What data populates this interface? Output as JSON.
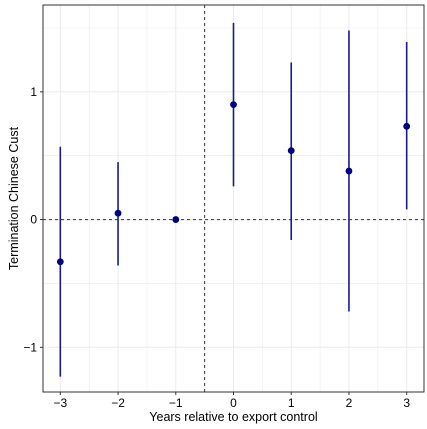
{
  "chart_data": {
    "type": "scatter",
    "subtype": "coefficient-plot-with-confidence-intervals",
    "xlabel": "Years relative to export control",
    "ylabel": "Termination Chinese Cust",
    "xlim": [
      -3.3,
      3.3
    ],
    "ylim": [
      -1.35,
      1.68
    ],
    "x_ticks": [
      -3,
      -2,
      -1,
      0,
      1,
      2,
      3
    ],
    "x_tick_labels": [
      "−3",
      "−2",
      "−1",
      "0",
      "1",
      "2",
      "3"
    ],
    "y_ticks": [
      -1,
      0,
      1
    ],
    "y_tick_labels": [
      "−1",
      "0",
      "1"
    ],
    "grid": true,
    "reference_lines": {
      "horizontal_at_y": 0,
      "vertical_at_x": -0.5,
      "style": "dashed"
    },
    "points": [
      {
        "x": -3,
        "estimate": -0.33,
        "ci_low": -1.23,
        "ci_high": 0.57
      },
      {
        "x": -2,
        "estimate": 0.05,
        "ci_low": -0.36,
        "ci_high": 0.45
      },
      {
        "x": -1,
        "estimate": 0.0,
        "ci_low": 0.0,
        "ci_high": 0.0
      },
      {
        "x": 0,
        "estimate": 0.9,
        "ci_low": 0.26,
        "ci_high": 1.54
      },
      {
        "x": 1,
        "estimate": 0.54,
        "ci_low": -0.16,
        "ci_high": 1.23
      },
      {
        "x": 2,
        "estimate": 0.38,
        "ci_low": -0.72,
        "ci_high": 1.48
      },
      {
        "x": 3,
        "estimate": 0.73,
        "ci_low": 0.08,
        "ci_high": 1.39
      }
    ],
    "colors": {
      "point": "#000080",
      "ci": "#1a1a8c",
      "grid": "#ebebeb",
      "panel_border": "#333333",
      "reference": "#333333"
    }
  }
}
